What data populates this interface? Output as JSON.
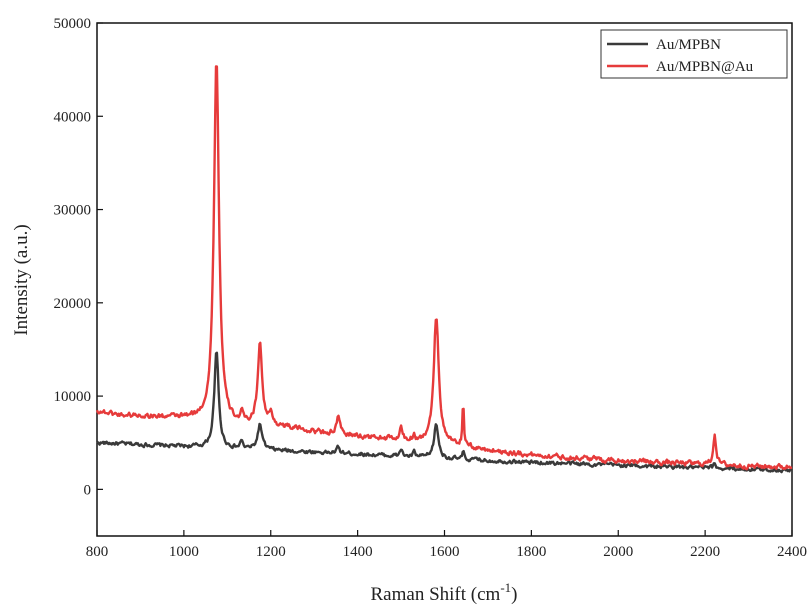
{
  "chart_data": {
    "type": "line",
    "title": "",
    "xlabel": "Raman Shift (cm",
    "xlabel_sup": "-1",
    "xlabel_tail": ")",
    "ylabel": "Intensity (a.u.)",
    "xlim": [
      800,
      2400
    ],
    "ylim": [
      -5000,
      50000
    ],
    "xticks": [
      800,
      1000,
      1200,
      1400,
      1600,
      1800,
      2000,
      2200,
      2400
    ],
    "yticks": [
      0,
      10000,
      20000,
      30000,
      40000,
      50000
    ],
    "grid": false,
    "legend_position": "top-right",
    "series": [
      {
        "name": "Au/MPBN",
        "color": "#3a3a3a",
        "baseline": [
          [
            800,
            5000
          ],
          [
            1000,
            4600
          ],
          [
            1200,
            4200
          ],
          [
            1400,
            3800
          ],
          [
            1600,
            3300
          ],
          [
            1800,
            2900
          ],
          [
            2000,
            2600
          ],
          [
            2200,
            2300
          ],
          [
            2400,
            2050
          ]
        ],
        "peaks": [
          {
            "x": 1075,
            "height": 10300,
            "width": 6
          },
          {
            "x": 1175,
            "height": 2700,
            "width": 6
          },
          {
            "x": 1133,
            "height": 900,
            "width": 3
          },
          {
            "x": 1355,
            "height": 600,
            "width": 4
          },
          {
            "x": 1500,
            "height": 800,
            "width": 3
          },
          {
            "x": 1530,
            "height": 500,
            "width": 3
          },
          {
            "x": 1581,
            "height": 3600,
            "width": 6
          },
          {
            "x": 1643,
            "height": 900,
            "width": 2
          },
          {
            "x": 2222,
            "height": 500,
            "width": 3
          }
        ],
        "noise": 350
      },
      {
        "name": "Au/MPBN@Au",
        "color": "#e63b3b",
        "baseline": [
          [
            800,
            8400
          ],
          [
            850,
            8000
          ],
          [
            900,
            7900
          ],
          [
            1000,
            7600
          ],
          [
            1050,
            7300
          ],
          [
            1100,
            6900
          ],
          [
            1200,
            6900
          ],
          [
            1300,
            6200
          ],
          [
            1400,
            5700
          ],
          [
            1500,
            5300
          ],
          [
            1600,
            4800
          ],
          [
            1700,
            4200
          ],
          [
            1800,
            3700
          ],
          [
            1900,
            3400
          ],
          [
            2000,
            3100
          ],
          [
            2100,
            2900
          ],
          [
            2200,
            2700
          ],
          [
            2300,
            2500
          ],
          [
            2400,
            2400
          ]
        ],
        "peaks": [
          {
            "x": 1075,
            "height": 39000,
            "width": 7
          },
          {
            "x": 1175,
            "height": 8700,
            "width": 6
          },
          {
            "x": 1200,
            "height": 1000,
            "width": 4
          },
          {
            "x": 1133,
            "height": 900,
            "width": 3
          },
          {
            "x": 1355,
            "height": 1700,
            "width": 5
          },
          {
            "x": 1500,
            "height": 1300,
            "width": 3
          },
          {
            "x": 1530,
            "height": 700,
            "width": 3
          },
          {
            "x": 1581,
            "height": 13700,
            "width": 7
          },
          {
            "x": 1643,
            "height": 5000,
            "width": 2
          },
          {
            "x": 2222,
            "height": 3300,
            "width": 4
          }
        ],
        "noise": 450
      }
    ]
  }
}
